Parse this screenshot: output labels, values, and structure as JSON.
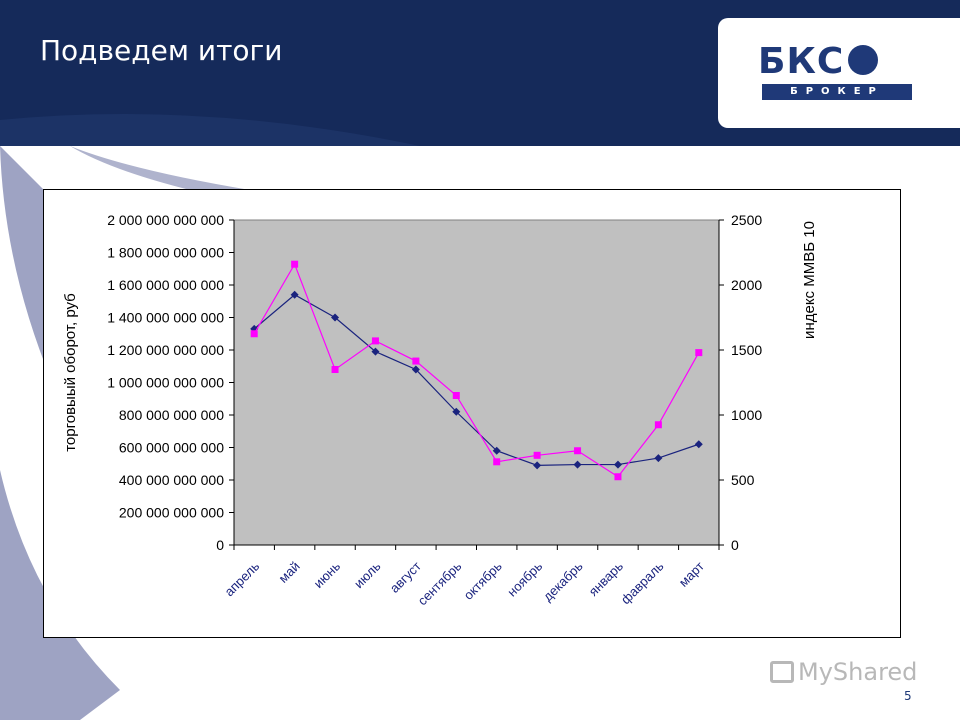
{
  "slide": {
    "title": "Подведем итоги",
    "page_number": "5"
  },
  "logo": {
    "letters": "БКС",
    "subtitle": "БРОКЕР"
  },
  "watermark": "MyShared",
  "colors": {
    "header": "#152a5a",
    "plot_bg": "#c0c0c0",
    "series_navy": "#1a237e",
    "series_magenta": "#ff00ff"
  },
  "chart_data": {
    "type": "line",
    "categories": [
      "апрель",
      "май",
      "июнь",
      "июль",
      "август",
      "сентябрь",
      "октябрь",
      "ноябрь",
      "декабрь",
      "январь",
      "фавраль",
      "март"
    ],
    "series": [
      {
        "axis": "left",
        "color": "#1a237e",
        "marker": "diamond",
        "values": [
          1330000000000,
          1540000000000,
          1400000000000,
          1190000000000,
          1080000000000,
          820000000000,
          580000000000,
          490000000000,
          495000000000,
          495000000000,
          535000000000,
          620000000000
        ]
      },
      {
        "axis": "right",
        "color": "#ff00ff",
        "marker": "square",
        "values": [
          1625,
          2160,
          1350,
          1570,
          1415,
          1150,
          640,
          690,
          725,
          525,
          925,
          1480
        ]
      }
    ],
    "y_left": {
      "label": "торговыый оборот, руб",
      "ylim": [
        0,
        2000000000000
      ],
      "ticks": [
        0,
        200000000000,
        400000000000,
        600000000000,
        800000000000,
        1000000000000,
        1200000000000,
        1400000000000,
        1600000000000,
        1800000000000,
        2000000000000
      ],
      "tick_labels": [
        "0",
        "200 000 000 000",
        "400 000 000 000",
        "600 000 000 000",
        "800 000 000 000",
        "1 000 000 000 000",
        "1 200 000 000 000",
        "1 400 000 000 000",
        "1 600 000 000 000",
        "1 800 000 000 000",
        "2 000 000 000 000"
      ]
    },
    "y_right": {
      "label": "индекс ММВБ 10",
      "ylim": [
        0,
        2500
      ],
      "ticks": [
        0,
        500,
        1000,
        1500,
        2000,
        2500
      ],
      "tick_labels": [
        "0",
        "500",
        "1000",
        "1500",
        "2000",
        "2500"
      ]
    },
    "grid": false,
    "legend": "none"
  }
}
